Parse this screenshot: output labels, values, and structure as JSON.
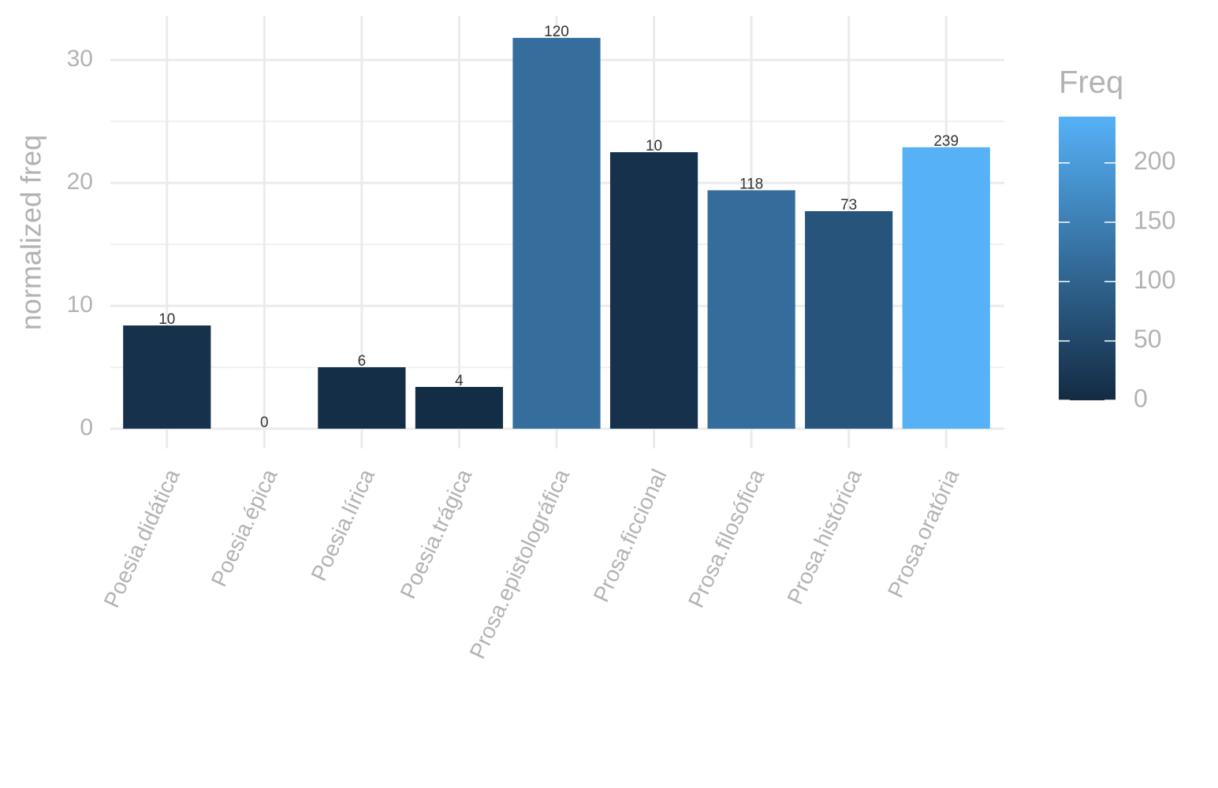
{
  "chart_data": {
    "type": "bar",
    "y_label": "normalized freq",
    "categories": [
      "Poesia.didática",
      "Poesia.épica",
      "Poesia.lírica",
      "Poesia.trágica",
      "Prosa.epistolográfica",
      "Prosa.ficcional",
      "Prosa.filosófica",
      "Prosa.histórica",
      "Prosa.oratória"
    ],
    "values": [
      8.4,
      0,
      5.0,
      3.4,
      31.8,
      22.5,
      19.4,
      17.7,
      22.9
    ],
    "freq": [
      10,
      0,
      6,
      4,
      120,
      10,
      118,
      73,
      239
    ],
    "ylim": [
      -1.6,
      33.6
    ],
    "yticks": [
      0,
      10,
      20,
      30
    ],
    "grid": true,
    "color_title": "Freq",
    "color_low": "#132b43",
    "color_high": "#56b1f7",
    "color_lim": [
      0,
      239
    ],
    "color_ticks": [
      0,
      50,
      100,
      150,
      200
    ]
  }
}
